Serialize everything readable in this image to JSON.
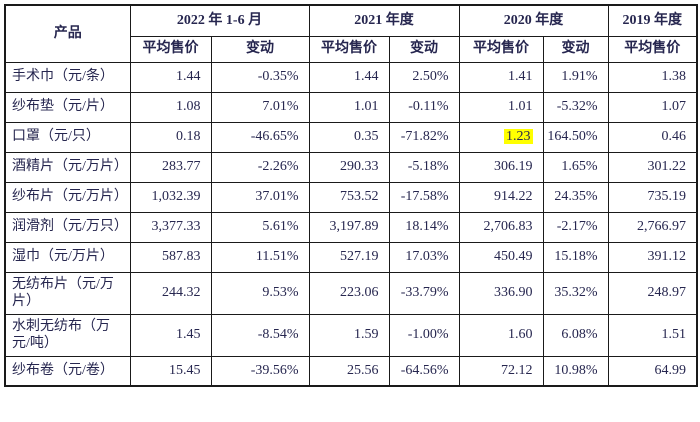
{
  "colors": {
    "box_red": "#e53527",
    "highlight_yellow": "#ffff00",
    "text_navy": "#26264f",
    "border_black": "#1a1a1a"
  },
  "table": {
    "header": {
      "product": "产品",
      "groups": [
        {
          "label": "2022 年 1-6 月"
        },
        {
          "label": "2021 年度"
        },
        {
          "label": "2020 年度"
        },
        {
          "label": "2019 年度"
        }
      ],
      "sub": {
        "avg_price": "平均售价",
        "change": "变动"
      }
    },
    "rows": [
      {
        "cells": [
          "手术巾（元/条）",
          "1.44",
          "-0.35%",
          "1.44",
          "2.50%",
          "1.41",
          "1.91%",
          "1.38"
        ]
      },
      {
        "cells": [
          "纱布垫（元/片）",
          "1.08",
          "7.01%",
          "1.01",
          "-0.11%",
          "1.01",
          "-5.32%",
          "1.07"
        ]
      },
      {
        "cells": [
          "口罩（元/只）",
          "0.18",
          "-46.65%",
          "0.35",
          "-71.82%",
          "1.23",
          "164.50%",
          "0.46"
        ],
        "boxed": true,
        "highlight_cell": 5
      },
      {
        "cells": [
          "酒精片（元/万片）",
          "283.77",
          "-2.26%",
          "290.33",
          "-5.18%",
          "306.19",
          "1.65%",
          "301.22"
        ]
      },
      {
        "cells": [
          "纱布片（元/万片）",
          "1,032.39",
          "37.01%",
          "753.52",
          "-17.58%",
          "914.22",
          "24.35%",
          "735.19"
        ]
      },
      {
        "cells": [
          "润滑剂（元/万只）",
          "3,377.33",
          "5.61%",
          "3,197.89",
          "18.14%",
          "2,706.83",
          "-2.17%",
          "2,766.97"
        ]
      },
      {
        "cells": [
          "湿巾（元/万片）",
          "587.83",
          "11.51%",
          "527.19",
          "17.03%",
          "450.49",
          "15.18%",
          "391.12"
        ]
      },
      {
        "cells": [
          "无纺布片（元/万片）",
          "244.32",
          "9.53%",
          "223.06",
          "-33.79%",
          "336.90",
          "35.32%",
          "248.97"
        ]
      },
      {
        "cells": [
          "水刺无纺布（万元/吨）",
          "1.45",
          "-8.54%",
          "1.59",
          "-1.00%",
          "1.60",
          "6.08%",
          "1.51"
        ]
      },
      {
        "cells": [
          "纱布卷（元/卷）",
          "15.45",
          "-39.56%",
          "25.56",
          "-64.56%",
          "72.12",
          "10.98%",
          "64.99"
        ]
      }
    ]
  }
}
